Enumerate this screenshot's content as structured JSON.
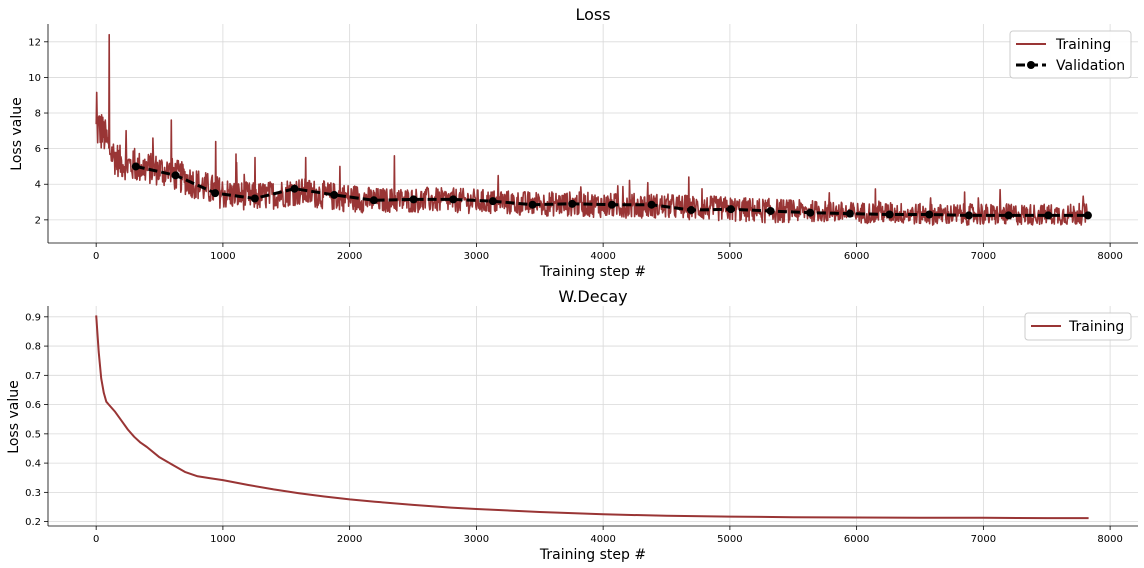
{
  "colors": {
    "training": "#993535",
    "validation": "#000000",
    "grid": "#d9d9d9"
  },
  "chart_data": [
    {
      "type": "line",
      "title": "Loss",
      "xlabel": "Training step #",
      "ylabel": "Loss value",
      "xlim": [
        -380,
        8220
      ],
      "ylim": [
        0.7,
        13.0
      ],
      "xticks": [
        0,
        1000,
        2000,
        3000,
        4000,
        5000,
        6000,
        7000,
        8000
      ],
      "yticks": [
        2,
        4,
        6,
        8,
        10,
        12
      ],
      "grid": true,
      "legend": "top-right",
      "series": [
        {
          "name": "Training",
          "style": "noisy-line",
          "x": [
            0,
            20,
            40,
            60,
            80,
            100,
            150,
            200,
            300,
            400,
            500,
            600,
            700,
            800,
            900,
            1000,
            1100,
            1250,
            1400,
            1560,
            1700,
            1880,
            2050,
            2200,
            2500,
            2800,
            3130,
            3440,
            3750,
            4060,
            4380,
            4690,
            5000,
            5320,
            5630,
            5940,
            6250,
            6570,
            6880,
            7190,
            7500,
            7820
          ],
          "values": [
            7.0,
            7.2,
            6.9,
            6.8,
            6.5,
            6.0,
            5.5,
            5.2,
            5.0,
            4.9,
            4.8,
            4.6,
            4.3,
            4.0,
            3.7,
            3.5,
            3.4,
            3.3,
            3.4,
            3.6,
            3.5,
            3.3,
            3.2,
            3.1,
            3.1,
            3.1,
            3.0,
            2.9,
            2.9,
            2.8,
            2.8,
            2.7,
            2.6,
            2.5,
            2.5,
            2.4,
            2.4,
            2.3,
            2.3,
            2.3,
            2.3,
            2.3
          ],
          "noise_spread": [
            1.2,
            1.2,
            1.1,
            1.1,
            1.0,
            1.0,
            1.0,
            0.9,
            0.9,
            0.9,
            0.9,
            0.9,
            0.9,
            0.9,
            0.9,
            0.9,
            0.8,
            0.8,
            0.8,
            0.8,
            0.8,
            0.8,
            0.8,
            0.7,
            0.7,
            0.7,
            0.7,
            0.7,
            0.7,
            0.7,
            0.7,
            0.7,
            0.7,
            0.7,
            0.6,
            0.6,
            0.6,
            0.6,
            0.6,
            0.6,
            0.6,
            0.6
          ],
          "spikes": [
            [
              100,
              12.4
            ],
            [
              40,
              7.9
            ],
            [
              300,
              6.0
            ],
            [
              590,
              7.6
            ],
            [
              940,
              6.4
            ],
            [
              1100,
              5.7
            ],
            [
              1250,
              5.5
            ],
            [
              1650,
              5.5
            ],
            [
              2350,
              5.6
            ],
            [
              1920,
              5.0
            ]
          ]
        },
        {
          "name": "Validation",
          "style": "dashed-markers",
          "x": [
            313,
            626,
            939,
            1252,
            1565,
            1878,
            2191,
            2504,
            2817,
            3130,
            3443,
            3756,
            4069,
            4382,
            4695,
            5008,
            5321,
            5634,
            5947,
            6260,
            6573,
            6886,
            7199,
            7512,
            7825
          ],
          "values": [
            5.0,
            4.5,
            3.5,
            3.2,
            3.75,
            3.4,
            3.1,
            3.15,
            3.15,
            3.05,
            2.85,
            2.9,
            2.85,
            2.85,
            2.55,
            2.6,
            2.5,
            2.4,
            2.35,
            2.3,
            2.3,
            2.25,
            2.25,
            2.25,
            2.25
          ]
        }
      ]
    },
    {
      "type": "line",
      "title": "W.Decay",
      "xlabel": "Training step #",
      "ylabel": "Loss value",
      "xlim": [
        -380,
        8220
      ],
      "ylim": [
        0.185,
        0.937
      ],
      "xticks": [
        0,
        1000,
        2000,
        3000,
        4000,
        5000,
        6000,
        7000,
        8000
      ],
      "yticks": [
        0.2,
        0.3,
        0.4,
        0.5,
        0.6,
        0.7,
        0.8,
        0.9
      ],
      "grid": true,
      "legend": "top-right",
      "series": [
        {
          "name": "Training",
          "style": "line",
          "x": [
            0,
            20,
            40,
            60,
            80,
            100,
            150,
            200,
            250,
            300,
            350,
            400,
            500,
            600,
            700,
            800,
            900,
            1000,
            1200,
            1400,
            1600,
            1800,
            2000,
            2200,
            2500,
            2800,
            3000,
            3500,
            4000,
            4500,
            5000,
            5500,
            6000,
            6500,
            7000,
            7500,
            7830
          ],
          "values": [
            0.905,
            0.78,
            0.69,
            0.64,
            0.61,
            0.6,
            0.575,
            0.545,
            0.515,
            0.49,
            0.47,
            0.455,
            0.42,
            0.395,
            0.37,
            0.355,
            0.348,
            0.342,
            0.325,
            0.31,
            0.297,
            0.286,
            0.276,
            0.268,
            0.257,
            0.248,
            0.243,
            0.233,
            0.225,
            0.22,
            0.217,
            0.215,
            0.214,
            0.213,
            0.213,
            0.212,
            0.212
          ]
        }
      ]
    }
  ]
}
